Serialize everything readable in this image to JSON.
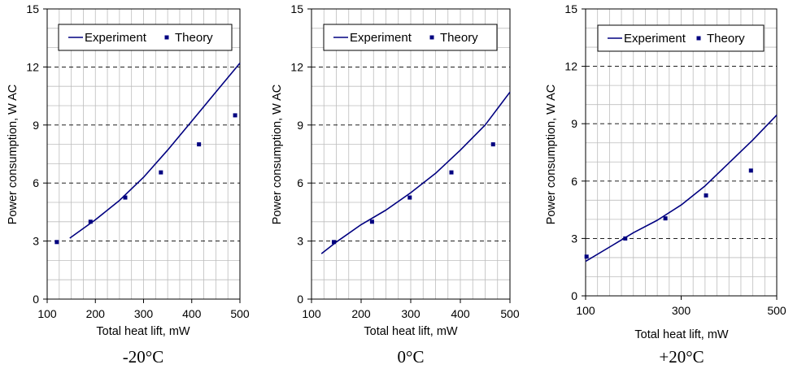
{
  "colors": {
    "series": "#000080",
    "minor_grid": "#bdbdbd",
    "major_grid": "#000000",
    "axis": "#000000"
  },
  "chart_data": [
    {
      "type": "line",
      "caption": "-20°C",
      "xlabel": "Total heat lift, mW",
      "ylabel": "Power consumption, W AC",
      "xlim": [
        100,
        500
      ],
      "ylim": [
        0,
        15
      ],
      "xticks": [
        100,
        200,
        300,
        400,
        500
      ],
      "yticks": [
        0,
        3,
        6,
        9,
        12,
        15
      ],
      "x_tick_labels": [
        "100",
        "200",
        "300",
        "400",
        "500"
      ],
      "y_tick_labels": [
        "0",
        "3",
        "6",
        "9",
        "12",
        "15"
      ],
      "grid": "minor vertical lines every 25 mW, minor horizontal lines every 1 W, dashed major horizontal lines at labeled ticks",
      "legend": "top",
      "series": [
        {
          "name": "Experiment",
          "style": "line",
          "x": [
            147,
            200,
            250,
            300,
            350,
            400,
            450,
            500
          ],
          "y": [
            3.15,
            4.1,
            5.1,
            6.3,
            7.7,
            9.2,
            10.7,
            12.2
          ]
        },
        {
          "name": "Theory",
          "style": "square-markers",
          "x": [
            120,
            190,
            262,
            336,
            415,
            490
          ],
          "y": [
            2.95,
            4.0,
            5.25,
            6.55,
            8.0,
            9.5
          ]
        }
      ]
    },
    {
      "type": "line",
      "caption": "0°C",
      "xlabel": "Total heat lift, mW",
      "ylabel": "Power consumption, W AC",
      "xlim": [
        100,
        500
      ],
      "ylim": [
        0,
        15
      ],
      "xticks": [
        100,
        200,
        300,
        400,
        500
      ],
      "yticks": [
        0,
        3,
        6,
        9,
        12,
        15
      ],
      "x_tick_labels": [
        "100",
        "200",
        "300",
        "400",
        "500"
      ],
      "y_tick_labels": [
        "0",
        "3",
        "6",
        "9",
        "12",
        "15"
      ],
      "grid": "minor vertical lines every 25 mW, minor horizontal lines every 1 W, dashed major horizontal lines at labeled ticks",
      "legend": "top",
      "series": [
        {
          "name": "Experiment",
          "style": "line",
          "x": [
            120,
            150,
            200,
            250,
            300,
            350,
            400,
            450,
            500
          ],
          "y": [
            2.35,
            2.95,
            3.85,
            4.6,
            5.5,
            6.5,
            7.7,
            9.0,
            10.7
          ]
        },
        {
          "name": "Theory",
          "style": "square-markers",
          "x": [
            145,
            222,
            298,
            382,
            466
          ],
          "y": [
            2.95,
            4.0,
            5.25,
            6.55,
            8.0
          ]
        }
      ]
    },
    {
      "type": "line",
      "caption": "+20°C",
      "xlabel": "Total heat lift, mW",
      "ylabel": "Power consumption, W AC",
      "xlim": [
        100,
        500
      ],
      "ylim": [
        0,
        15
      ],
      "xticks": [
        100,
        300,
        500
      ],
      "yticks": [
        0,
        3,
        6,
        9,
        12,
        15
      ],
      "x_tick_labels": [
        "100",
        "300",
        "500"
      ],
      "y_tick_labels": [
        "0",
        "3",
        "6",
        "9",
        "12",
        "15"
      ],
      "grid": "minor vertical lines every 25 mW, minor horizontal lines every 1 W, dashed major horizontal lines at labeled ticks",
      "legend": "top",
      "series": [
        {
          "name": "Experiment",
          "style": "line",
          "x": [
            100,
            150,
            200,
            250,
            300,
            350,
            400,
            450,
            500
          ],
          "y": [
            1.8,
            2.55,
            3.3,
            3.95,
            4.75,
            5.75,
            6.95,
            8.15,
            9.45
          ]
        },
        {
          "name": "Theory",
          "style": "square-markers",
          "x": [
            102,
            183,
            267,
            352,
            446
          ],
          "y": [
            2.05,
            3.0,
            4.05,
            5.25,
            6.55
          ]
        }
      ]
    }
  ]
}
